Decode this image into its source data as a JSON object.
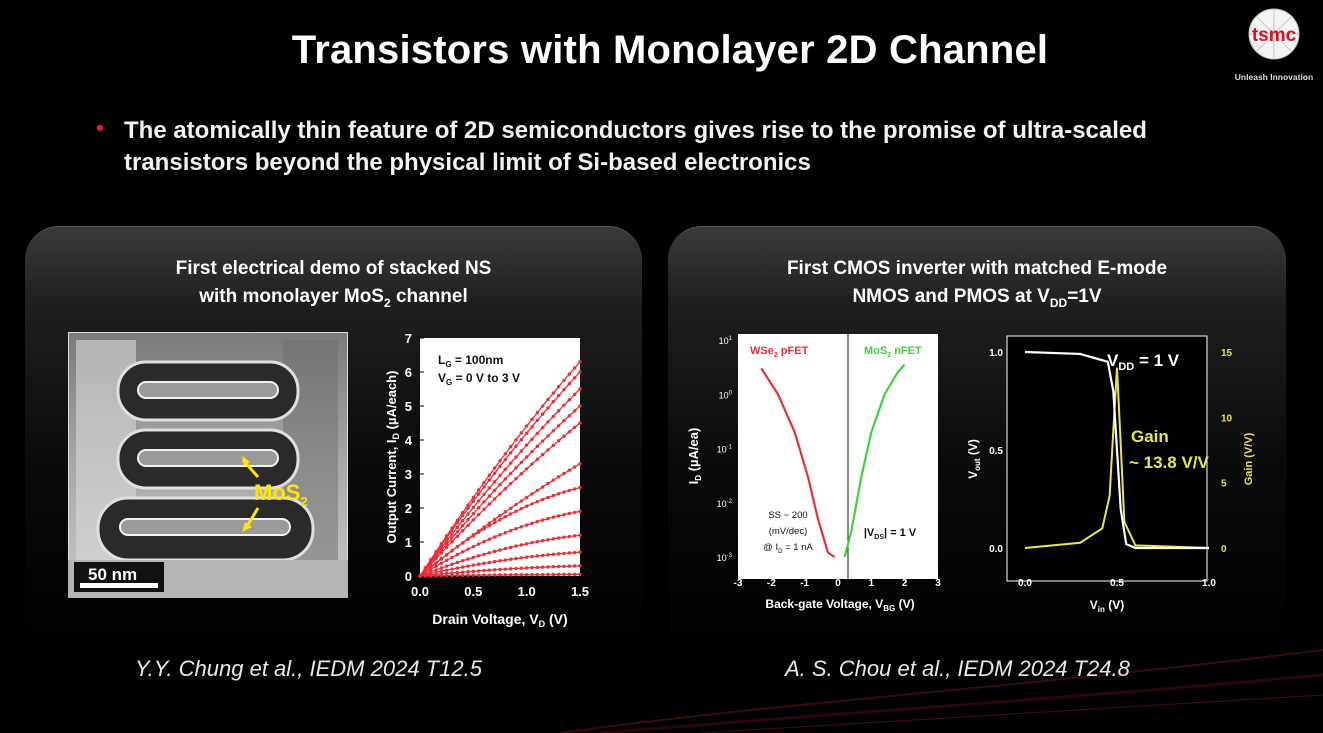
{
  "title": "Transistors with Monolayer 2D Channel",
  "logo": {
    "text": "tsmc",
    "tagline": "Unleash Innovation"
  },
  "bullet": "The atomically thin feature of 2D semiconductors gives rise to the promise of ultra-scaled transistors beyond the physical limit of Si-based electronics",
  "left_panel": {
    "heading_line1": "First electrical demo of stacked NS",
    "heading_line2_pre": "with monolayer MoS",
    "heading_line2_sub": "2",
    "heading_line2_post": " channel",
    "tem": {
      "label_main": "MoS",
      "label_sub": "2",
      "scale_bar": "50 nm"
    },
    "citation": "Y.Y. Chung et al., IEDM 2024 T12.5"
  },
  "right_panel": {
    "heading_line1": "First CMOS inverter with matched E-mode",
    "heading_line2_pre": "NMOS and PMOS at V",
    "heading_line2_sub": "DD",
    "heading_line2_post": "=1V",
    "citation": "A. S. Chou et al., IEDM 2024 T24.8"
  },
  "colors": {
    "accent_red": "#e0202a",
    "curve_red": "#e8303a",
    "curve_green": "#3cd23c",
    "curve_yellow": "#e6e650",
    "curve_white": "#ffffff"
  },
  "chart_data": [
    {
      "type": "scatter",
      "xlabel": "Drain Voltage, V",
      "xlabel_sub": "D",
      "xlabel_post": " (V)",
      "ylabel": "Output Current, I",
      "ylabel_sub": "D",
      "ylabel_post": " (µA/each)",
      "xlim": [
        0,
        1.5
      ],
      "ylim": [
        0,
        7
      ],
      "xticks": [
        "0.0",
        "0.5",
        "1.0",
        "1.5"
      ],
      "yticks": [
        "0",
        "1",
        "2",
        "3",
        "4",
        "5",
        "6",
        "7"
      ],
      "annotation_lines": [
        "L",
        "G",
        " = 100nm",
        "V",
        "G",
        " = 0 V to 3 V"
      ],
      "annot_lg_pre": "L",
      "annot_lg_sub": "G",
      "annot_lg_post": " = 100nm",
      "annot_vg_pre": "V",
      "annot_vg_sub": "G",
      "annot_vg_post": " = 0 V to 3 V",
      "series_end_values": [
        0.05,
        0.3,
        0.7,
        1.2,
        1.9,
        2.6,
        3.3,
        4.5,
        5.0,
        5.5,
        6.0,
        6.3
      ]
    },
    {
      "type": "line",
      "xlabel": "Back-gate Voltage, V",
      "xlabel_sub": "BG",
      "xlabel_post": " (V)",
      "ylabel": "I",
      "ylabel_sub": "D",
      "ylabel_post": " (µA/ea)",
      "xlim": [
        -3,
        3
      ],
      "xticks": [
        "-3",
        "-2",
        "-1",
        "0",
        "1",
        "2",
        "3"
      ],
      "yticks": [
        "10",
        "1",
        "0",
        "-1",
        "-2",
        "-3"
      ],
      "ytick_base": "10",
      "ytick_exps": [
        "1",
        "0",
        "-1",
        "-2",
        "-3"
      ],
      "yscale": "log",
      "ylim": [
        0.001,
        10
      ],
      "series": [
        {
          "name_pre": "WSe",
          "name_sub": "2",
          "name_post": " pFET",
          "x": [
            -2.3,
            -1.8,
            -1.3,
            -0.9,
            -0.6,
            -0.3,
            -0.1
          ],
          "y": [
            3.0,
            1.0,
            0.2,
            0.03,
            0.005,
            0.0012,
            0.001
          ]
        },
        {
          "name_pre": "MoS",
          "name_sub": "2",
          "name_post": " nFET",
          "x": [
            0.2,
            0.4,
            0.7,
            1.0,
            1.4,
            1.8,
            2.0
          ],
          "y": [
            0.001,
            0.003,
            0.03,
            0.2,
            1.0,
            2.6,
            3.5
          ]
        }
      ],
      "note_ss": [
        "SS ~ 200",
        "(mV/dec)",
        "@ I",
        "D",
        " = 1 nA"
      ],
      "ss_line1": "SS ~ 200",
      "ss_line2": "(mV/dec)",
      "ss_line3_pre": "@ I",
      "ss_line3_sub": "D",
      "ss_line3_post": " = 1 nA",
      "vds_pre": "|V",
      "vds_sub": "DS",
      "vds_post": "| = 1 V"
    },
    {
      "type": "line",
      "xlabel": "V",
      "xlabel_sub": "in",
      "xlabel_post": " (V)",
      "ylabel": "V",
      "ylabel_sub": "out",
      "ylabel_post": " (V)",
      "y2label": "Gain (V/V)",
      "xlim": [
        0,
        1.0
      ],
      "ylim": [
        0,
        1.0
      ],
      "y2lim": [
        0,
        15
      ],
      "xticks": [
        "0.0",
        "0.5",
        "1.0"
      ],
      "yticks": [
        "0.0",
        "0.5",
        "1.0"
      ],
      "y2ticks": [
        "0",
        "5",
        "10",
        "15"
      ],
      "vtc": {
        "x": [
          0.0,
          0.3,
          0.45,
          0.48,
          0.5,
          0.52,
          0.55,
          0.6,
          1.0
        ],
        "y": [
          1.0,
          0.99,
          0.95,
          0.8,
          0.5,
          0.2,
          0.02,
          0.0,
          0.0
        ]
      },
      "gain": {
        "x": [
          0.0,
          0.3,
          0.42,
          0.46,
          0.48,
          0.5,
          0.52,
          0.54,
          0.6,
          1.0
        ],
        "y": [
          0,
          0.4,
          1.5,
          4,
          9,
          13.8,
          8,
          2,
          0.2,
          0
        ]
      },
      "annot_vdd_pre": "V",
      "annot_vdd_sub": "DD",
      "annot_vdd_post": " = 1 V",
      "annot_gain_1": "Gain",
      "annot_gain_2": "~ 13.8 V/V"
    }
  ]
}
